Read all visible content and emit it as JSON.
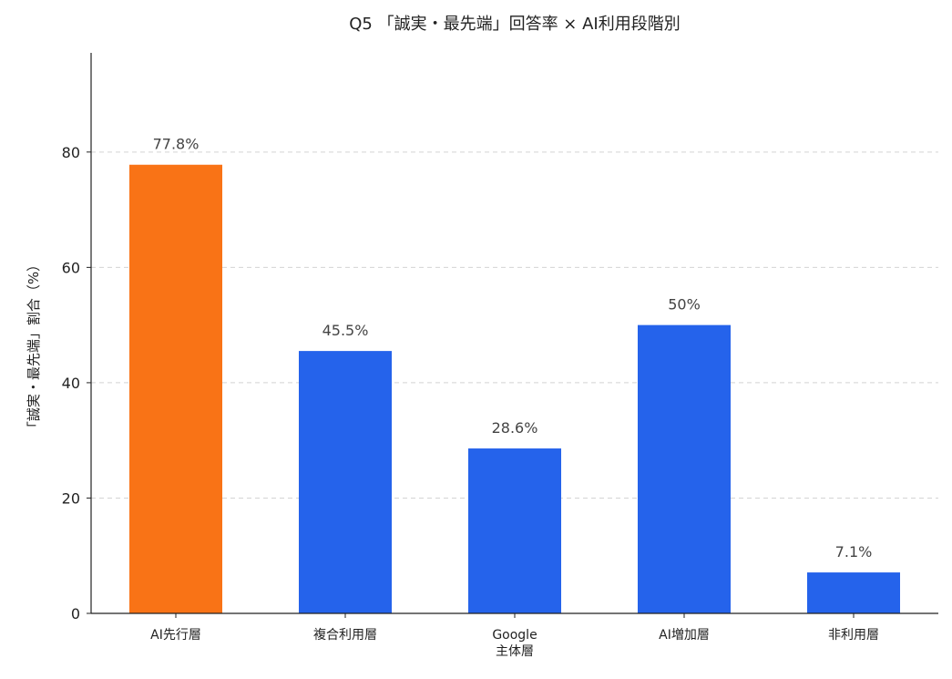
{
  "chart_data": {
    "type": "bar",
    "title": "Q5 「誠実・最先端」回答率 × AI利用段階別",
    "xlabel": "",
    "ylabel": "「誠実・最先端」割合（%）",
    "categories": [
      [
        "AI先行層"
      ],
      [
        "複合利用層"
      ],
      [
        "Google",
        "主体層"
      ],
      [
        "AI増加層"
      ],
      [
        "非利用層"
      ]
    ],
    "values": [
      77.8,
      45.5,
      28.6,
      50,
      7.1
    ],
    "data_labels": [
      "77.8%",
      "45.5%",
      "28.6%",
      "50%",
      "7.1%"
    ],
    "bar_colors": [
      "#f97316",
      "#2563eb",
      "#2563eb",
      "#2563eb",
      "#2563eb"
    ],
    "ylim": [
      0,
      97.2
    ],
    "yticks": [
      0,
      20,
      40,
      60,
      80
    ],
    "grid": "y-dashed",
    "legend": "none"
  }
}
